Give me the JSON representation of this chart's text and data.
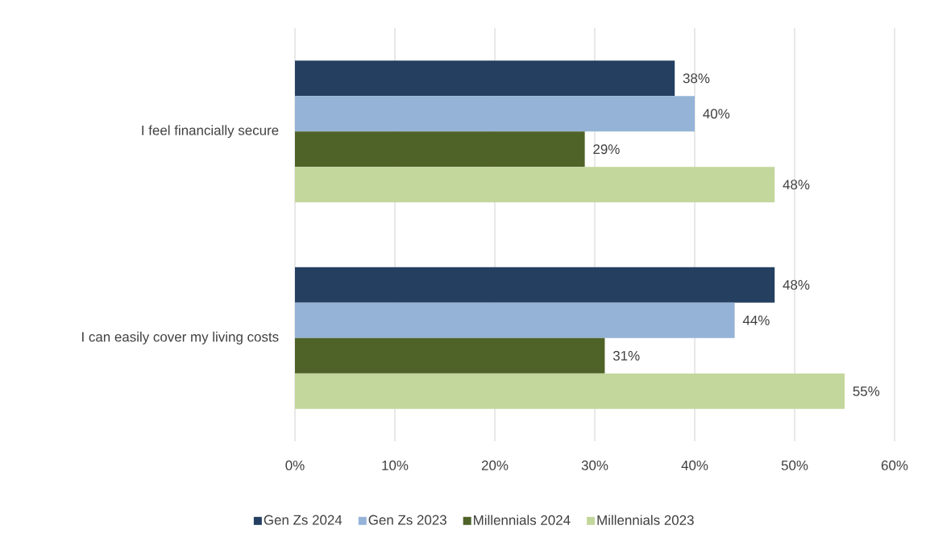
{
  "chart_data": {
    "type": "bar",
    "orientation": "horizontal",
    "categories": [
      "I feel financially secure",
      "I can easily cover my living costs"
    ],
    "series": [
      {
        "name": "Gen Zs 2024",
        "color": "#243f60",
        "values": [
          38,
          48
        ],
        "value_labels": [
          "38%",
          "48%"
        ]
      },
      {
        "name": "Gen Zs 2023",
        "color": "#95b3d7",
        "values": [
          40,
          44
        ],
        "value_labels": [
          "40%",
          "44%"
        ]
      },
      {
        "name": "Millennials 2024",
        "color": "#4f6228",
        "values": [
          29,
          31
        ],
        "value_labels": [
          "29%",
          "31%"
        ]
      },
      {
        "name": "Millennials 2023",
        "color": "#c3d69b",
        "values": [
          48,
          55
        ],
        "value_labels": [
          "48%",
          "55%"
        ]
      }
    ],
    "xlim": [
      0,
      60
    ],
    "xticks": [
      {
        "value": 0,
        "label": "0%"
      },
      {
        "value": 10,
        "label": "10%"
      },
      {
        "value": 20,
        "label": "20%"
      },
      {
        "value": 30,
        "label": "30%"
      },
      {
        "value": 40,
        "label": "40%"
      },
      {
        "value": 50,
        "label": "50%"
      },
      {
        "value": 60,
        "label": "60%"
      }
    ],
    "grid": "x",
    "legend": "bottom"
  }
}
